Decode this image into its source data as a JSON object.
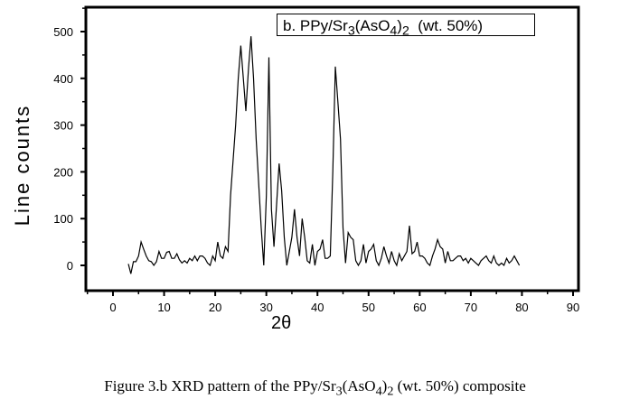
{
  "chart_data": {
    "type": "line",
    "title": "",
    "legend": "b. PPy/Sr3(AsO4)2 (wt. 50%)",
    "legend_parts": {
      "a": "b. PPy/Sr",
      "s1": "3",
      "b": "(AsO",
      "s2": "4",
      ")": ")",
      "s3": "2",
      "c": "  (wt. 50%)"
    },
    "legend_position": "top-right",
    "xlabel": "2θ",
    "ylabel": "Line counts",
    "xlim": [
      -5,
      92
    ],
    "ylim": [
      -58,
      550
    ],
    "xticks": [
      0,
      10,
      20,
      30,
      40,
      50,
      60,
      70,
      80,
      90
    ],
    "yticks": [
      0,
      100,
      200,
      300,
      400,
      500
    ],
    "x": [
      3,
      3.5,
      4,
      4.5,
      5,
      5.5,
      6,
      6.5,
      7,
      7.5,
      8,
      8.5,
      9,
      9.5,
      10,
      10.5,
      11,
      11.5,
      12,
      12.5,
      13,
      13.5,
      14,
      14.5,
      15,
      15.5,
      16,
      16.5,
      17,
      17.5,
      18,
      18.5,
      19,
      19.5,
      20,
      20.5,
      21,
      21.5,
      22,
      22.5,
      23,
      24,
      24.5,
      25,
      25.5,
      26,
      26.5,
      27,
      27.5,
      28,
      29,
      29.5,
      30,
      30.5,
      31,
      31.5,
      32,
      32.5,
      33,
      33.5,
      34,
      34.5,
      35,
      35.5,
      36,
      36.5,
      37,
      37.5,
      38,
      38.5,
      39,
      39.5,
      40,
      40.5,
      41,
      41.5,
      42,
      42.5,
      43,
      43.5,
      44,
      44.5,
      45,
      45.5,
      46,
      46.5,
      47,
      47.5,
      48,
      48.5,
      49,
      49.5,
      50,
      50.5,
      51,
      51.5,
      52,
      52.5,
      53,
      53.5,
      54,
      54.5,
      55,
      55.5,
      56,
      56.5,
      57,
      57.5,
      58,
      58.5,
      59,
      59.5,
      60,
      60.5,
      61,
      61.5,
      62,
      62.5,
      63,
      63.5,
      64,
      64.5,
      65,
      65.5,
      66,
      66.5,
      67,
      67.5,
      68,
      68.5,
      69,
      69.5,
      70,
      70.5,
      71,
      71.5,
      72,
      72.5,
      73,
      73.5,
      74,
      74.5,
      75,
      75.5,
      76,
      76.5,
      77,
      77.5,
      78,
      78.5,
      79,
      79.5
    ],
    "values": [
      3,
      -18,
      8,
      8,
      20,
      50,
      35,
      20,
      10,
      8,
      0,
      8,
      30,
      15,
      15,
      28,
      30,
      15,
      15,
      25,
      12,
      5,
      10,
      5,
      15,
      10,
      20,
      10,
      20,
      20,
      15,
      5,
      0,
      20,
      10,
      50,
      20,
      15,
      40,
      30,
      150,
      300,
      400,
      470,
      400,
      330,
      420,
      490,
      400,
      270,
      80,
      0,
      150,
      445,
      120,
      40,
      130,
      218,
      160,
      60,
      0,
      30,
      60,
      120,
      60,
      20,
      100,
      60,
      10,
      5,
      45,
      0,
      30,
      35,
      55,
      15,
      15,
      20,
      200,
      425,
      350,
      270,
      80,
      5,
      70,
      60,
      55,
      10,
      0,
      10,
      45,
      5,
      30,
      35,
      45,
      10,
      0,
      15,
      40,
      20,
      5,
      30,
      10,
      0,
      25,
      10,
      20,
      30,
      85,
      25,
      30,
      50,
      20,
      20,
      15,
      5,
      0,
      20,
      35,
      55,
      40,
      35,
      5,
      30,
      10,
      10,
      15,
      20,
      20,
      10,
      15,
      5,
      15,
      10,
      5,
      0,
      10,
      15,
      20,
      10,
      5,
      20,
      5,
      0,
      5,
      0,
      15,
      5,
      10,
      20,
      10,
      0
    ]
  },
  "caption": "Figure 3.b XRD pattern of the PPy/Sr3(AsO4)2 (wt. 50%) composite",
  "caption_parts": {
    "a": "Figure 3.b XRD pattern of the PPy/Sr",
    "s1": "3",
    "b": "(AsO",
    "s2": "4",
    ")": ")",
    "s3": "2",
    "c": " (wt. 50%) composite"
  }
}
